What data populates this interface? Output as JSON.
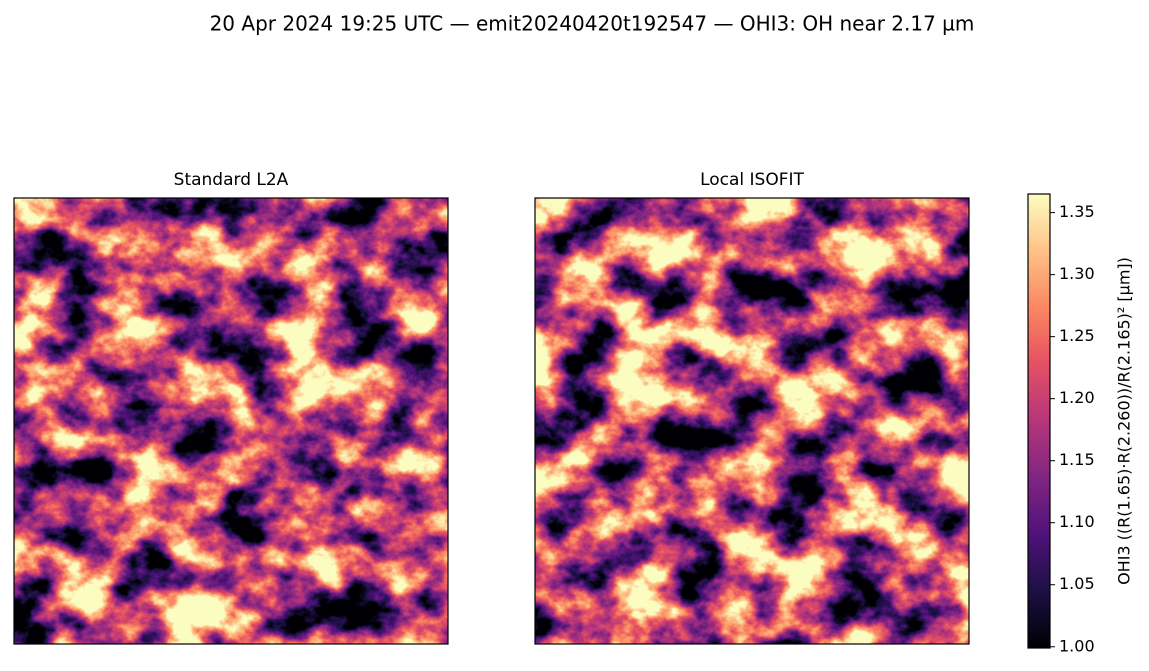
{
  "chart_data": {
    "type": "image",
    "title": "20 Apr 2024 19:25 UTC — emit20240420t192547 — OHI3: OH near 2.17 µm",
    "panels": [
      {
        "title": "Standard L2A"
      },
      {
        "title": "Local ISOFIT"
      }
    ],
    "colorbar": {
      "label": "OHI3  ((R(1.65)·R(2.260))/R(2.165)²  [μm])",
      "colormap": "magma",
      "ylim": [
        0.999,
        1.365
      ],
      "yticks": [
        {
          "value": 1,
          "label": "1.00"
        },
        {
          "value": 1.05,
          "label": "1.05"
        },
        {
          "value": 1.1,
          "label": "1.10"
        },
        {
          "value": 1.15,
          "label": "1.15"
        },
        {
          "value": 1.2,
          "label": "1.20"
        },
        {
          "value": 1.25,
          "label": "1.25"
        },
        {
          "value": 1.3,
          "label": "1.30"
        },
        {
          "value": 1.35,
          "label": "1.35"
        }
      ]
    }
  }
}
